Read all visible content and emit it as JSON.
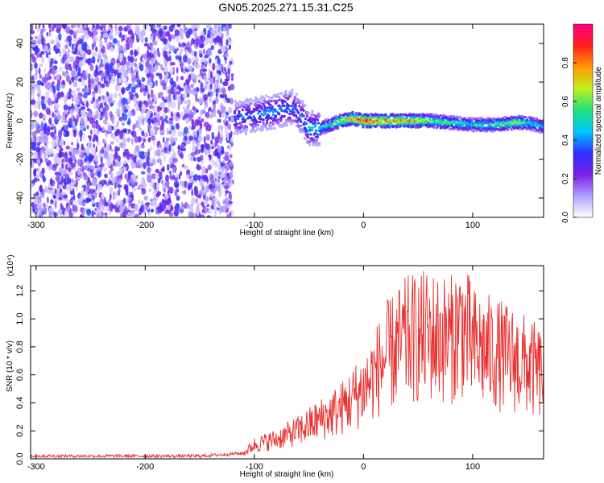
{
  "title": "GN05.2025.271.15.31.C25",
  "colors": {
    "series": "#e8312f",
    "colormap": [
      "#ffffff",
      "#b0a0ff",
      "#7a1fe6",
      "#3030ff",
      "#00c8ff",
      "#22e07a",
      "#c0f020",
      "#ff9a00",
      "#ff1d1d",
      "#ff007f"
    ]
  },
  "chart_data": [
    {
      "type": "heatmap",
      "title": "GN05.2025.271.15.31.C25",
      "xlabel": "Height of straight line (km)",
      "ylabel": "Frequency (Hz)",
      "xlim": [
        -305,
        165
      ],
      "ylim": [
        -50,
        50
      ],
      "x_ticks": [
        "-300",
        "-200",
        "-100",
        "0",
        "100"
      ],
      "y_ticks": [
        "40",
        "20",
        "0",
        "-20",
        "-40"
      ],
      "colorbar": {
        "label": "Normalized spectral amplitude",
        "range": [
          0,
          1
        ],
        "ticks": [
          "0.0",
          "0.2",
          "0.4",
          "0.6",
          "0.8"
        ]
      },
      "regions": [
        {
          "from_x": -305,
          "to_x": -120,
          "description": "broadband noise, amplitude ~0.1-0.3"
        },
        {
          "from_x": -120,
          "to_x": 165,
          "description": "narrow band near 0 Hz"
        }
      ],
      "ridge": {
        "x": [
          -118,
          -100,
          -80,
          -65,
          -55,
          -50,
          -40,
          -30,
          -20,
          -10,
          0,
          20,
          40,
          60,
          80,
          100,
          120,
          140,
          150,
          165
        ],
        "frequency": [
          1,
          3,
          5,
          7,
          1,
          -4,
          -4,
          -2,
          0,
          1,
          0,
          0,
          0,
          0,
          -1,
          -2,
          -2,
          -1,
          -1,
          -3
        ],
        "amplitude": [
          0.4,
          0.4,
          0.45,
          0.45,
          0.4,
          0.5,
          0.55,
          0.6,
          0.75,
          0.85,
          0.95,
          0.9,
          0.85,
          0.7,
          0.6,
          0.55,
          0.6,
          0.7,
          0.6,
          0.5
        ]
      }
    },
    {
      "type": "line",
      "xlabel": "Height of straight line (km)",
      "ylabel": "SNR (10 * v/v)",
      "y_multiplier": "(x10⁴)",
      "xlim": [
        -305,
        165
      ],
      "ylim": [
        0,
        1.38
      ],
      "x_ticks": [
        "-300",
        "-200",
        "-100",
        "0",
        "100"
      ],
      "y_ticks": [
        "0.0",
        "0.2",
        "0.4",
        "0.6",
        "0.8",
        "1.0",
        "1.2"
      ],
      "series": [
        {
          "x": [
            -305,
            -250,
            -200,
            -150,
            -110,
            -100,
            -80,
            -60,
            -40,
            -20,
            0,
            10,
            20,
            40,
            60,
            80,
            90,
            100,
            120,
            140,
            160,
            165
          ],
          "y": [
            0.02,
            0.02,
            0.02,
            0.02,
            0.04,
            0.1,
            0.14,
            0.2,
            0.28,
            0.36,
            0.5,
            0.6,
            0.72,
            0.85,
            0.88,
            0.85,
            0.95,
            0.8,
            0.75,
            0.7,
            0.62,
            0.6
          ]
        }
      ]
    }
  ]
}
